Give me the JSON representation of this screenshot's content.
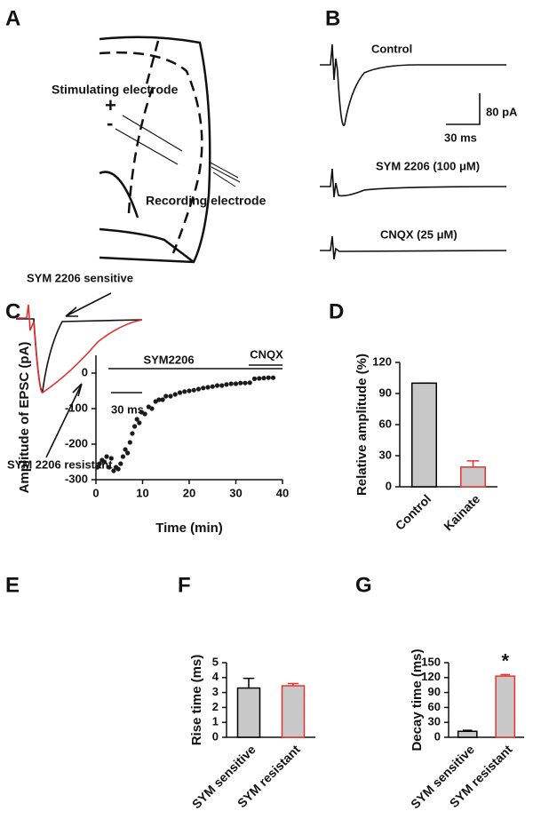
{
  "panel_labels": [
    "A",
    "B",
    "C",
    "D",
    "E",
    "F",
    "G"
  ],
  "panel_a": {
    "stimulating": "Stimulating electrode",
    "recording": "Recording electrode",
    "plus": "+",
    "minus": "-"
  },
  "panel_b": {
    "traces": [
      "Control",
      "SYM 2206 (100 μM)",
      "CNQX (25 μM)"
    ],
    "scale_y": "80 pA",
    "scale_x": "30 ms"
  },
  "panel_e": {
    "sensitive": "SYM 2206 sensitive",
    "resistant": "SYM 2206 resistant",
    "scale_x": "30 ms"
  },
  "chart_data": [
    {
      "type": "scatter",
      "xlabel": "Time (min)",
      "ylabel": "Amplitude of EPSC (pA)",
      "labels": [
        "SYM2206",
        "CNQX"
      ],
      "color": "#1a1a1a",
      "x": [
        0.3,
        0.8,
        1.3,
        1.8,
        2.3,
        2.8,
        3.3,
        3.8,
        4.3,
        4.8,
        5.3,
        5.8,
        6.3,
        6.8,
        7.3,
        7.8,
        8.3,
        8.8,
        9.3,
        9.8,
        10.5,
        11.3,
        12,
        12.8,
        13.5,
        14.3,
        15,
        16,
        17,
        18,
        19,
        20,
        21,
        22,
        23,
        24,
        25,
        26,
        27,
        28,
        29,
        30,
        31,
        32,
        33,
        34,
        35,
        36,
        37,
        38
      ],
      "y": [
        -265,
        -255,
        -245,
        -250,
        -235,
        -265,
        -240,
        -275,
        -265,
        -270,
        -255,
        -235,
        -215,
        -225,
        -195,
        -170,
        -150,
        -130,
        -140,
        -110,
        -115,
        -95,
        -100,
        -80,
        -75,
        -75,
        -65,
        -65,
        -60,
        -55,
        -52,
        -50,
        -48,
        -45,
        -42,
        -40,
        -38,
        -35,
        -35,
        -32,
        -30,
        -30,
        -28,
        -28,
        -27,
        -16,
        -15,
        -14,
        -13,
        -13
      ],
      "xlim": [
        0,
        40
      ],
      "xticks": [
        0,
        10,
        20,
        30,
        40
      ],
      "ylim": [
        -300,
        50
      ],
      "yticks": [
        -300,
        -200,
        -100,
        0
      ]
    },
    {
      "type": "bar",
      "ylabel": "Relative amplitude (%)",
      "categories": [
        "Control",
        "Kainate"
      ],
      "values": [
        100,
        19
      ],
      "errors": [
        0,
        6
      ],
      "fill": "#c8c8c8",
      "edge_colors": [
        "#000000",
        "#e8322f"
      ],
      "ylim": [
        0,
        120
      ],
      "yticks": [
        0,
        30,
        60,
        90,
        120
      ]
    },
    {
      "type": "bar",
      "ylabel": "Rise time (ms)",
      "categories": [
        "SYM sensitive",
        "SYM resistant"
      ],
      "values": [
        3.3,
        3.45
      ],
      "errors": [
        0.65,
        0.15
      ],
      "fill": "#c8c8c8",
      "edge_colors": [
        "#000000",
        "#e8322f"
      ],
      "ylim": [
        0,
        5
      ],
      "yticks": [
        0,
        1,
        2,
        3,
        4,
        5
      ]
    },
    {
      "type": "bar",
      "ylabel": "Decay time (ms)",
      "categories": [
        "SYM sensitive",
        "SYM resistant"
      ],
      "values": [
        12,
        123
      ],
      "errors": [
        2,
        3
      ],
      "fill": "#c8c8c8",
      "edge_colors": [
        "#000000",
        "#e8322f"
      ],
      "ylim": [
        0,
        150
      ],
      "yticks": [
        0,
        30,
        60,
        90,
        120,
        150
      ],
      "annotation": "*"
    }
  ]
}
